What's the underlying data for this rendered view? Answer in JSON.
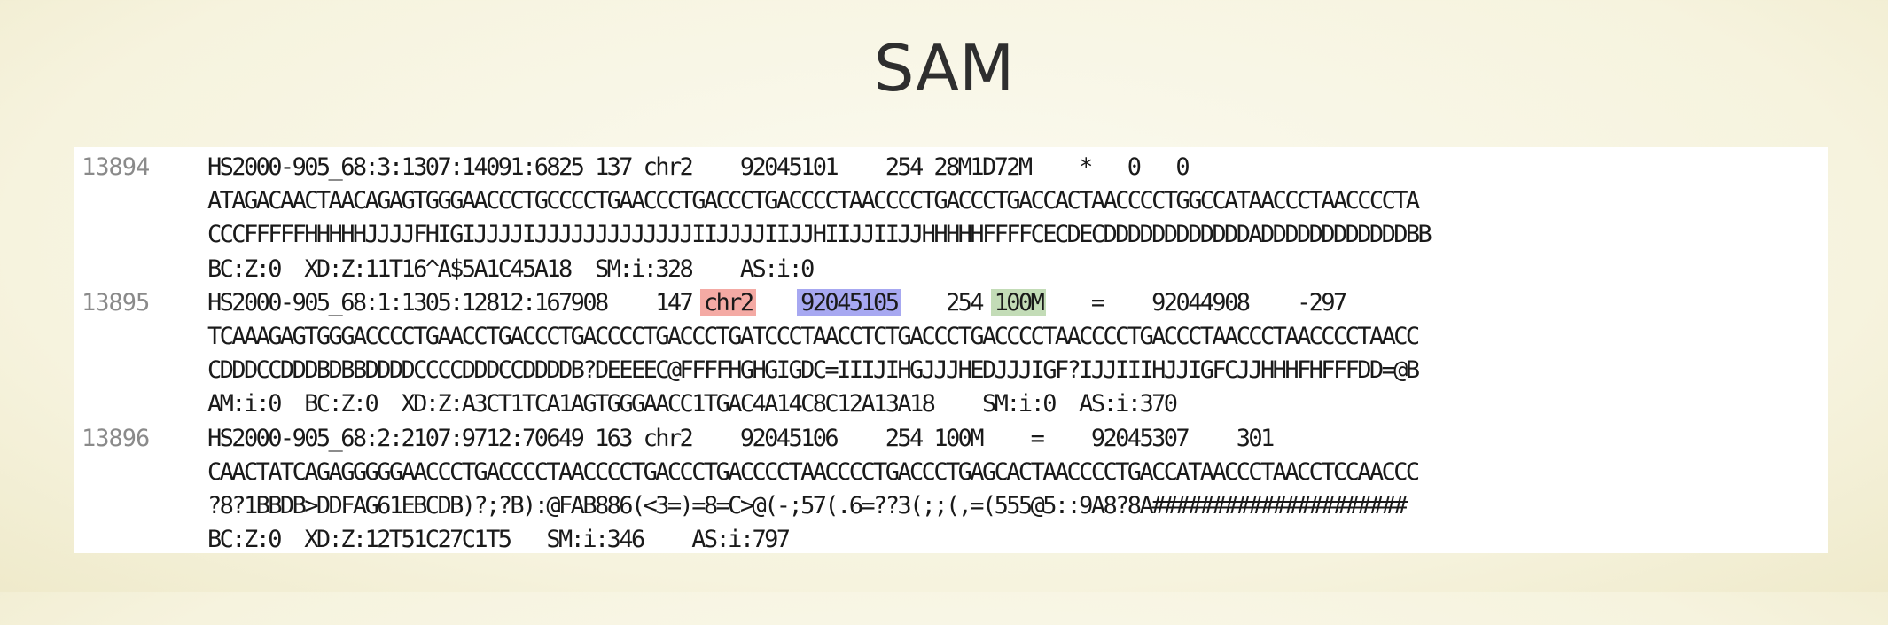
{
  "title": "SAM",
  "records": [
    {
      "row_number": "13894",
      "header_line": "HS2000-905_68:3:1307:14091:6825 137 chr2    92045101    254 28M1D72M    *   0   0",
      "sequence": "ATAGACAACTAACAGAGTGGGAACCCTGCCCCTGAACCCTGACCCTGACCCCTAACCCCTGACCCTGACCACTAACCCCTGGCCATAACCCTAACCCCTA",
      "quality": "CCCFFFFFHHHHHJJJJFHIGIJJJJIJJJJJJJJJJJJJIIJJJJIIJJHIIJJIIJJHHHHHFFFFCECDECDDDDDDDDDDDDADDDDDDDDDDDDBB",
      "tags": "BC:Z:0  XD:Z:11T16^A$5A1C45A18  SM:i:328    AS:i:0"
    },
    {
      "row_number": "13895",
      "header": {
        "qname_flag": "HS2000-905_68:1:1305:12812:167908    147 ",
        "rname": "chr2",
        "gap1": "    ",
        "pos": "92045105",
        "gap2": "    254 ",
        "cigar": "100M",
        "rest": "    =    92044908    -297"
      },
      "sequence": "TCAAAGAGTGGGACCCCTGAACCTGACCCTGACCCCTGACCCTGATCCCTAACCTCTGACCCTGACCCCTAACCCCTGACCCTAACCCTAACCCCTAACC",
      "quality": "CDDDCCDDDBDBBDDDDCCCCDDDCCDDDDB?DEEEEC@FFFFHGHGIGDC=IIIJIHGJJJHEDJJJIGF?IJJIIIHJJIGFCJJHHHFHFFFDD=@B",
      "tags": "AM:i:0  BC:Z:0  XD:Z:A3CT1TCA1AGTGGGAACC1TGAC4A14C8C12A13A18    SM:i:0  AS:i:370"
    },
    {
      "row_number": "13896",
      "header_line": "HS2000-905_68:2:2107:9712:70649 163 chr2    92045106    254 100M    =    92045307    301",
      "sequence": "CAACTATCAGAGGGGGAACCCTGACCCCTAACCCCTGACCCTGACCCCTAACCCCTGACCCTGAGCACTAACCCCTGACCATAACCCTAACCTCCAACCC",
      "quality": "?8?1BBDB>DDFAG61EBCDB)?;?B):@FAB886(<3=)=8=C>@(-;57(.6=??3(;;(,=(555@5::9A8?8A#####################",
      "tags": "BC:Z:0  XD:Z:12T51C27C1T5   SM:i:346    AS:i:797"
    }
  ],
  "highlight_colors": {
    "rname": "#f4aaa4",
    "pos": "#a7a8f1",
    "cigar": "#c3dcb7"
  }
}
